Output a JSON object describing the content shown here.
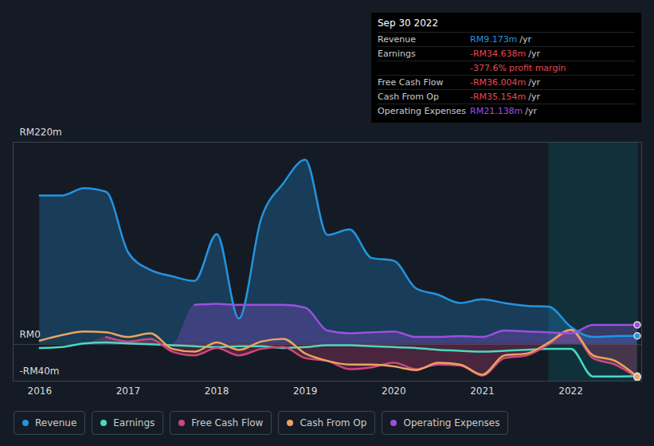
{
  "chart_data": {
    "type": "line",
    "x": [
      2016.0,
      2016.25,
      2016.5,
      2016.75,
      2017.0,
      2017.25,
      2017.5,
      2017.75,
      2018.0,
      2018.25,
      2018.5,
      2018.75,
      2019.0,
      2019.25,
      2019.5,
      2019.75,
      2020.0,
      2020.25,
      2020.5,
      2020.75,
      2021.0,
      2021.25,
      2021.5,
      2021.75,
      2022.0,
      2022.25,
      2022.5,
      2022.75
    ],
    "xlim": [
      2015.7,
      2022.8
    ],
    "xticks": [
      2016,
      2017,
      2018,
      2019,
      2020,
      2021,
      2022
    ],
    "ylim": [
      -40,
      220
    ],
    "yticks": [
      {
        "value": 220,
        "label": "RM220m"
      },
      {
        "value": 0,
        "label": "RM0"
      },
      {
        "value": -40,
        "label": "-RM40m"
      }
    ],
    "grid": true,
    "legend": "bottom",
    "highlight_x": [
      2021.75,
      2022.76
    ],
    "series": [
      {
        "name": "Revenue",
        "color": "#2394df",
        "type": "area",
        "values": [
          162,
          162,
          170,
          166,
          100,
          81,
          74,
          69,
          120,
          28,
          136,
          175,
          201,
          119,
          125,
          94,
          91,
          61,
          54,
          45,
          49,
          45,
          42,
          41,
          19,
          8,
          9,
          9.173
        ]
      },
      {
        "name": "Earnings",
        "color": "#4ad9c2",
        "type": "line",
        "values": [
          -4,
          -3,
          1,
          2,
          1,
          0,
          -1,
          -2,
          -3,
          -2,
          -2,
          -4,
          -3,
          -1,
          -1,
          -2,
          -3,
          -4,
          -6,
          -7,
          -8,
          -7,
          -6,
          -5,
          -5,
          -35,
          -35,
          -34.638
        ]
      },
      {
        "name": "Free Cash Flow",
        "color": "#d1457e",
        "type": "area",
        "values": [
          null,
          null,
          null,
          8,
          3,
          6,
          -8,
          -12,
          -4,
          -12,
          -5,
          -3,
          -15,
          -18,
          -27,
          -25,
          -20,
          -27,
          -22,
          -23,
          -34,
          -15,
          -12,
          0,
          15,
          -15,
          -22,
          -36.004
        ]
      },
      {
        "name": "Cash From Op",
        "color": "#e8a55e",
        "type": "line",
        "values": [
          4,
          10,
          14,
          13,
          8,
          12,
          -5,
          -8,
          2,
          -6,
          3,
          6,
          -10,
          -18,
          -22,
          -22,
          -24,
          -28,
          -20,
          -22,
          -33,
          -12,
          -10,
          2,
          16,
          -12,
          -18,
          -35.154
        ]
      },
      {
        "name": "Operating Expenses",
        "color": "#9c4fe0",
        "type": "area",
        "values": [
          null,
          null,
          null,
          null,
          null,
          null,
          null,
          43,
          44,
          43,
          43,
          43,
          40,
          15,
          12,
          13,
          14,
          8,
          8,
          9,
          8,
          15,
          14,
          13,
          12,
          21,
          21,
          21.138
        ]
      }
    ],
    "annotations": {
      "title": "Sep 30 2022",
      "rows": [
        {
          "label": "Revenue",
          "value": "RM9.173m",
          "unit": "/yr",
          "color": "#2394df"
        },
        {
          "label": "Earnings",
          "value": "-RM34.638m",
          "unit": "/yr",
          "color": "#e8484f"
        },
        {
          "value": "-377.6%",
          "unit": "profit margin",
          "color": "#e8484f"
        },
        {
          "label": "Free Cash Flow",
          "value": "-RM36.004m",
          "unit": "/yr",
          "color": "#e8484f"
        },
        {
          "label": "Cash From Op",
          "value": "-RM35.154m",
          "unit": "/yr",
          "color": "#e8484f"
        },
        {
          "label": "Operating Expenses",
          "value": "RM21.138m",
          "unit": "/yr",
          "color": "#9c4fe0"
        }
      ]
    }
  }
}
